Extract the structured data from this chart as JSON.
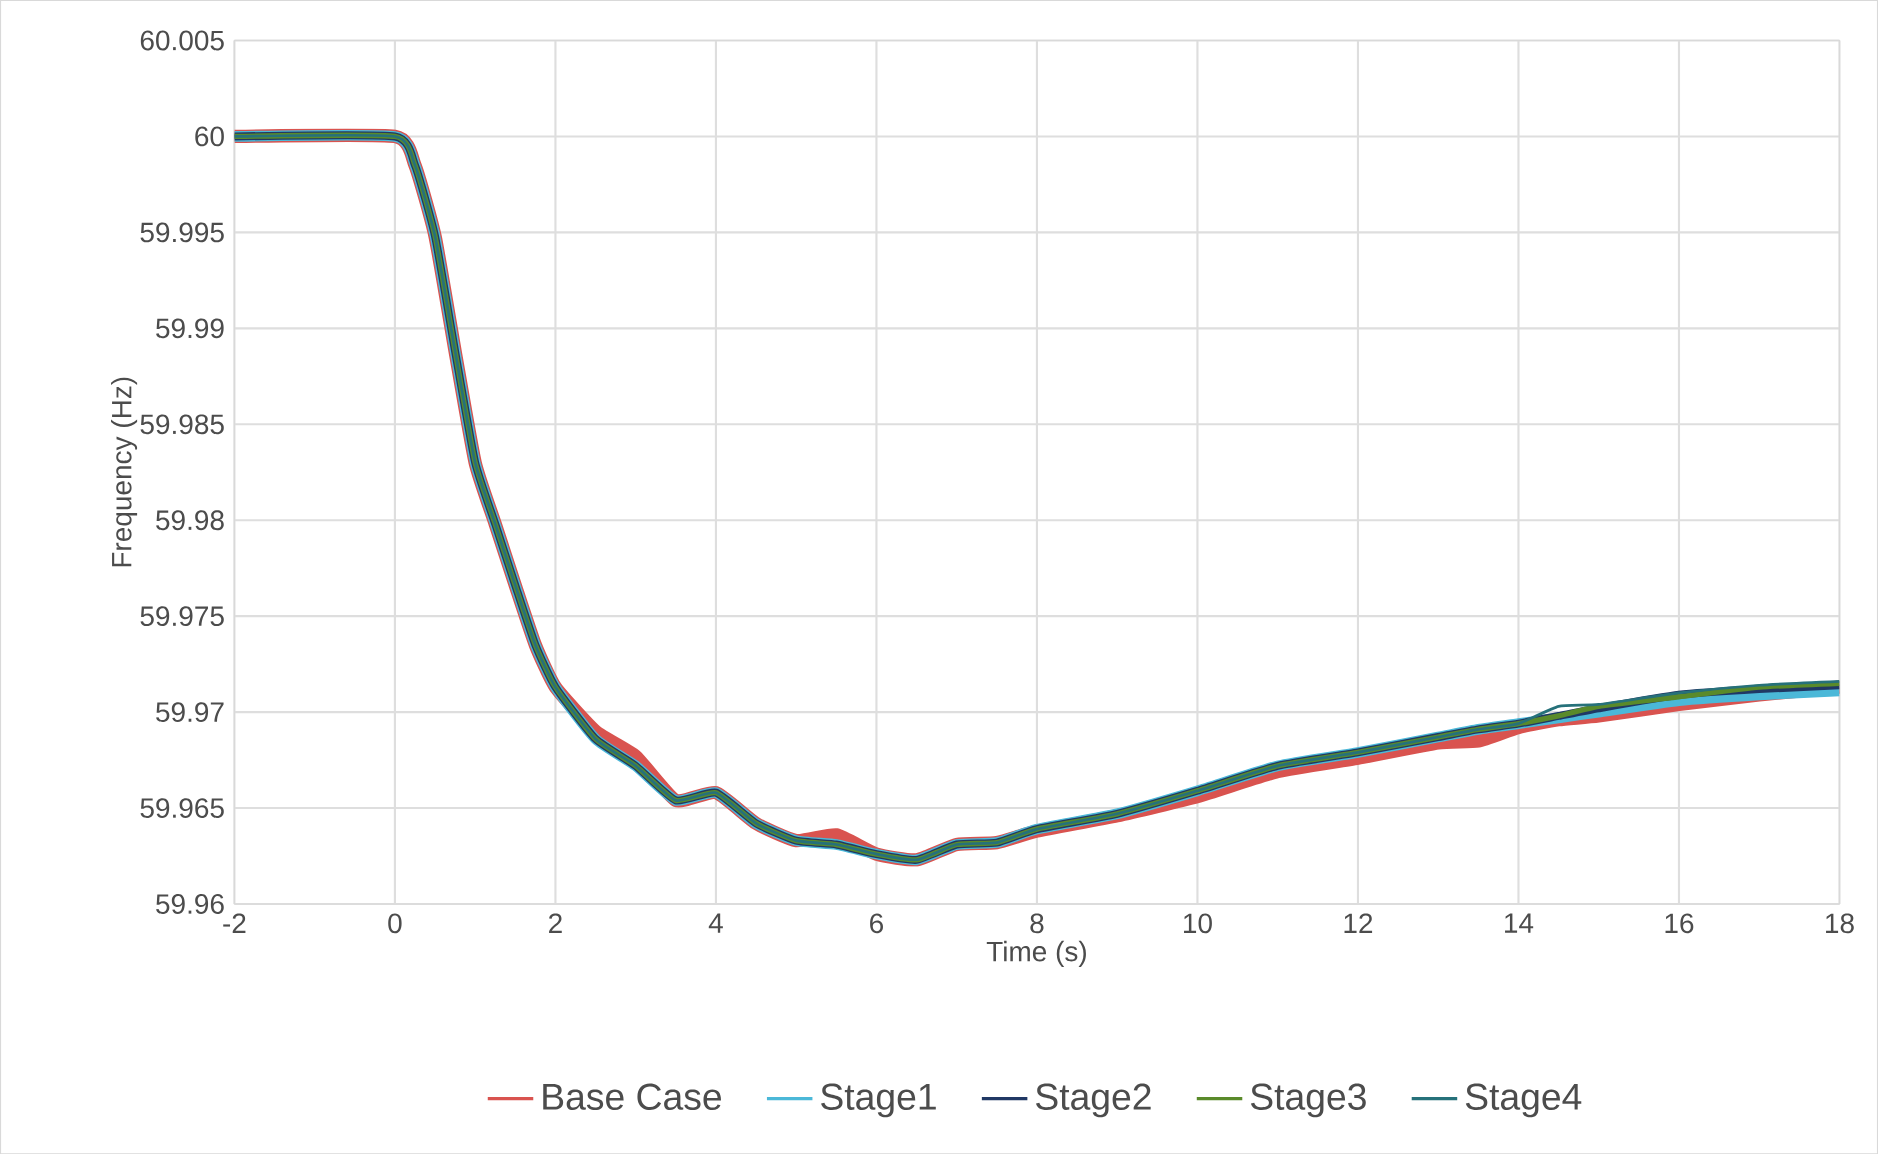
{
  "chart_data": {
    "type": "line",
    "xlabel": "Time (s)",
    "ylabel": "Frequency (Hz)",
    "x": [
      -2,
      0,
      0.25,
      0.5,
      0.75,
      1,
      1.25,
      1.5,
      1.75,
      2,
      2.5,
      3,
      3.5,
      4,
      4.5,
      5,
      5.5,
      6,
      6.5,
      7,
      7.5,
      8,
      9,
      10,
      11,
      12,
      13,
      13.5,
      14,
      14.5,
      15,
      16,
      17,
      18
    ],
    "series": [
      {
        "name": "Base Case",
        "color": "#d9534f",
        "values": [
          60,
          60,
          59.9985,
          59.9948,
          59.9888,
          59.983,
          59.9798,
          59.9766,
          59.9735,
          59.9713,
          59.969,
          59.9677,
          59.9654,
          59.9658,
          59.9642,
          59.9633,
          59.9636,
          59.9626,
          59.9623,
          59.9631,
          59.9632,
          59.9638,
          59.9646,
          59.9656,
          59.9669,
          59.9676,
          59.9684,
          59.9685,
          59.9692,
          59.9696,
          59.9698,
          59.9704,
          59.9709,
          59.9713
        ]
      },
      {
        "name": "Stage1",
        "color": "#4bb8d8",
        "values": [
          60,
          60,
          59.9985,
          59.9948,
          59.9888,
          59.983,
          59.9798,
          59.9766,
          59.9735,
          59.9713,
          59.9686,
          59.9672,
          59.9654,
          59.9658,
          59.9642,
          59.9633,
          59.9631,
          59.9626,
          59.9623,
          59.9631,
          59.9632,
          59.9639,
          59.9647,
          59.9659,
          59.9672,
          59.9679,
          59.9687,
          59.9691,
          59.9694,
          59.9697,
          59.97,
          59.9706,
          59.9709,
          59.9711
        ]
      },
      {
        "name": "Stage2",
        "color": "#203864",
        "values": [
          60,
          60,
          59.9985,
          59.9948,
          59.9888,
          59.983,
          59.9798,
          59.9766,
          59.9735,
          59.9713,
          59.9686,
          59.9672,
          59.9654,
          59.9658,
          59.9642,
          59.9633,
          59.9631,
          59.9626,
          59.9623,
          59.9631,
          59.9632,
          59.9639,
          59.9647,
          59.9659,
          59.9672,
          59.9679,
          59.9687,
          59.9691,
          59.9694,
          59.9698,
          59.9702,
          59.9709,
          59.9712,
          59.9714
        ]
      },
      {
        "name": "Stage3",
        "color": "#5a8a2a",
        "values": [
          60,
          60,
          59.9985,
          59.9948,
          59.9888,
          59.983,
          59.9798,
          59.9766,
          59.9735,
          59.9713,
          59.9686,
          59.9672,
          59.9654,
          59.9658,
          59.9642,
          59.9633,
          59.9631,
          59.9626,
          59.9623,
          59.9631,
          59.9632,
          59.9639,
          59.9647,
          59.9659,
          59.9672,
          59.9679,
          59.9687,
          59.9691,
          59.9694,
          59.9698,
          59.9703,
          59.9708,
          59.9713,
          59.9715
        ]
      },
      {
        "name": "Stage4",
        "color": "#26717a",
        "values": [
          60,
          60,
          59.9985,
          59.9948,
          59.9888,
          59.983,
          59.9798,
          59.9766,
          59.9735,
          59.9713,
          59.9686,
          59.9672,
          59.9654,
          59.9658,
          59.9642,
          59.9633,
          59.9631,
          59.9626,
          59.9623,
          59.9631,
          59.9632,
          59.9639,
          59.9647,
          59.9659,
          59.9672,
          59.9679,
          59.9687,
          59.9691,
          59.9694,
          59.9703,
          59.9704,
          59.971,
          59.9714,
          59.9716
        ]
      }
    ],
    "xlim": [
      -2,
      18
    ],
    "xticks": [
      -2,
      0,
      2,
      4,
      6,
      8,
      10,
      12,
      14,
      16,
      18
    ],
    "ylim": [
      59.96,
      60.005
    ],
    "yticks": [
      59.96,
      59.965,
      59.97,
      59.975,
      59.98,
      59.985,
      59.99,
      59.995,
      60,
      60.005
    ],
    "grid": true,
    "legend": "bottom",
    "marker": "none",
    "line_style": "solid"
  }
}
